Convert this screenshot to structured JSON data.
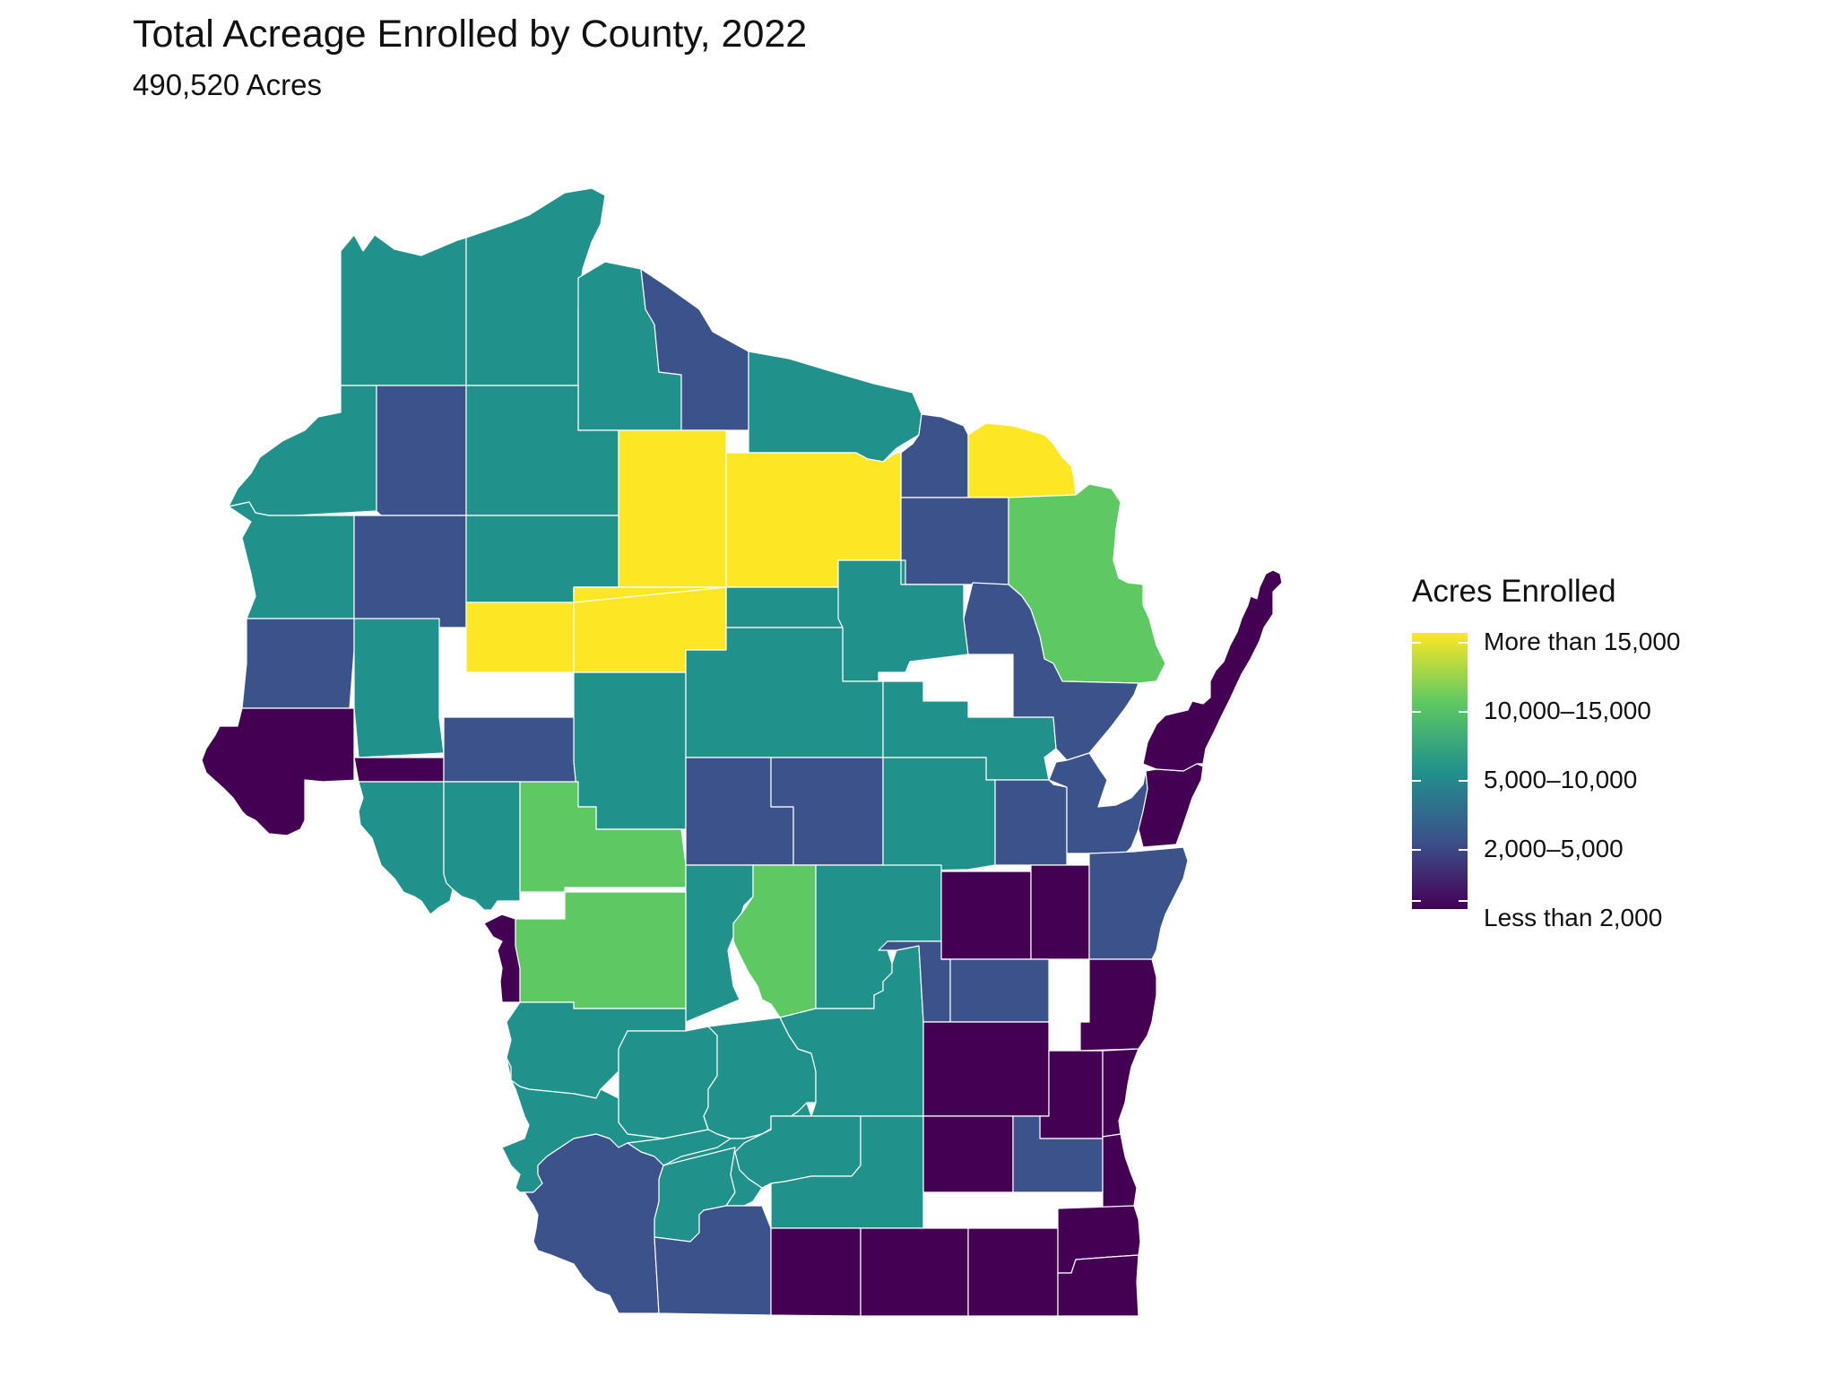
{
  "title": "Total Acreage Enrolled by County, 2022",
  "subtitle": "490,520 Acres",
  "legend": {
    "title": "Acres Enrolled",
    "labels": [
      "More than 15,000",
      "10,000–15,000",
      "5,000–10,000",
      "2,000–5,000",
      "Less than 2,000"
    ]
  },
  "colors": {
    "more_than_15000": "#fde725",
    "10000_15000": "#5ec962",
    "5000_10000": "#21918c",
    "2000_5000": "#3b528b",
    "less_than_2000": "#440154",
    "no_data": "#ffffff",
    "border": "#ffffff"
  },
  "map_data": {
    "region": "Wisconsin",
    "unit": "county",
    "category_counts": {
      "More than 15,000": 4,
      "10,000–15,000": 4,
      "5,000–10,000": 27,
      "2,000–5,000": 18,
      "Less than 2,000": 18,
      "No data": 1
    }
  }
}
